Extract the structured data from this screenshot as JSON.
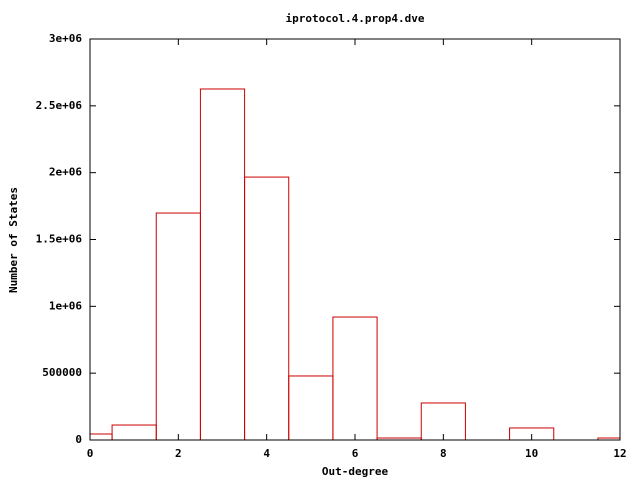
{
  "chart_data": {
    "type": "histogram",
    "title": "iprotocol.4.prop4.dve",
    "x_label": "Out-degree",
    "y_label": "Number of States",
    "bins": [
      -0.5,
      0.5,
      1.5,
      2.5,
      3.5,
      4.5,
      5.5,
      6.5,
      7.5,
      8.5,
      9.5,
      10.5,
      11.5,
      12.5
    ],
    "values": [
      45000,
      112000,
      1698000,
      2626000,
      1967000,
      479000,
      920000,
      15000,
      277000,
      0,
      90000,
      0,
      15000
    ],
    "color": "#cc0000",
    "xlim": [
      0,
      12
    ],
    "xticks": [
      0,
      2,
      4,
      6,
      8,
      10,
      12
    ],
    "ylim": [
      0,
      3000000
    ],
    "yticks": [
      0,
      500000,
      {
        "value": 1000000,
        "label": "1e+06"
      },
      {
        "value": 1500000,
        "label": "1.5e+06"
      },
      {
        "value": 2000000,
        "label": "2e+06"
      },
      {
        "value": 2500000,
        "label": "2.5e+06"
      },
      {
        "value": 3000000,
        "label": "3e+06"
      }
    ]
  }
}
